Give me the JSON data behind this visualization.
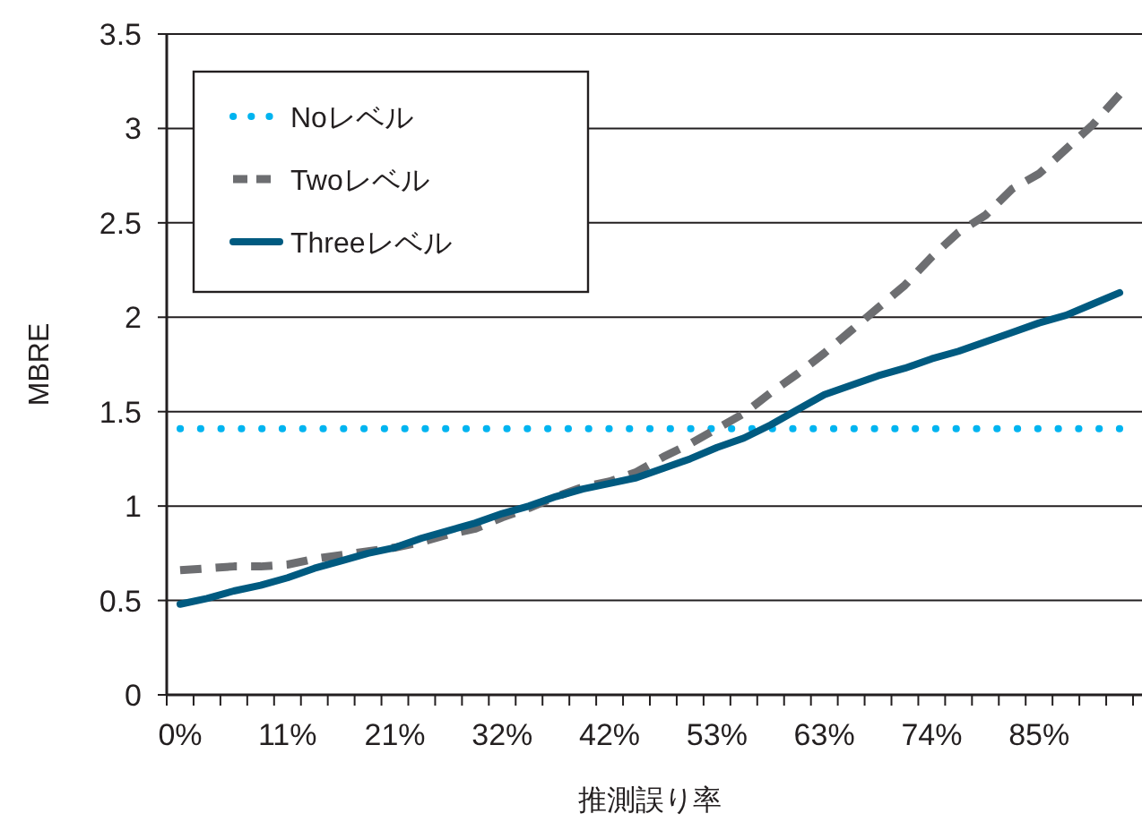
{
  "chart_data": {
    "type": "line",
    "xlabel": "推測誤り率",
    "ylabel": "MBRE",
    "categories": [
      "0%",
      null,
      null,
      null,
      "11%",
      null,
      null,
      null,
      "21%",
      null,
      null,
      null,
      "32%",
      null,
      null,
      null,
      "42%",
      null,
      null,
      null,
      "53%",
      null,
      null,
      null,
      "63%",
      null,
      null,
      null,
      "74%",
      null,
      null,
      null,
      "85%",
      null,
      null,
      null
    ],
    "series": [
      {
        "name": "Noレベル",
        "color": "#00b4f0",
        "line_style": "dotted",
        "values": [
          1.41,
          1.41,
          1.41,
          1.41,
          1.41,
          1.41,
          1.41,
          1.41,
          1.41,
          1.41,
          1.41,
          1.41,
          1.41,
          1.41,
          1.41,
          1.41,
          1.41,
          1.41,
          1.41,
          1.41,
          1.41,
          1.41,
          1.41,
          1.41,
          1.41,
          1.41,
          1.41,
          1.41,
          1.41,
          1.41,
          1.41,
          1.41,
          1.41,
          1.41,
          1.41,
          1.41
        ]
      },
      {
        "name": "Twoレベル",
        "color": "#6d6e71",
        "line_style": "dashed",
        "values": [
          0.66,
          0.67,
          0.68,
          0.68,
          0.69,
          0.72,
          0.74,
          0.76,
          0.78,
          0.81,
          0.85,
          0.88,
          0.94,
          0.99,
          1.05,
          1.1,
          1.13,
          1.18,
          1.26,
          1.33,
          1.41,
          1.49,
          1.6,
          1.7,
          1.81,
          1.93,
          2.05,
          2.17,
          2.32,
          2.45,
          2.54,
          2.68,
          2.76,
          2.89,
          3.02,
          3.18
        ]
      },
      {
        "name": "Threeレベル",
        "color": "#005a80",
        "line_style": "solid",
        "values": [
          0.48,
          0.51,
          0.55,
          0.58,
          0.62,
          0.67,
          0.71,
          0.75,
          0.78,
          0.83,
          0.87,
          0.91,
          0.96,
          1.0,
          1.05,
          1.09,
          1.12,
          1.15,
          1.2,
          1.25,
          1.31,
          1.36,
          1.43,
          1.51,
          1.59,
          1.64,
          1.69,
          1.73,
          1.78,
          1.82,
          1.87,
          1.92,
          1.97,
          2.01,
          2.07,
          2.13
        ]
      }
    ],
    "ylim": [
      0,
      3.5
    ],
    "yticks": [
      0,
      0.5,
      1,
      1.5,
      2,
      2.5,
      3,
      3.5
    ],
    "grid": "y",
    "legend": "top left",
    "marker": "none"
  }
}
